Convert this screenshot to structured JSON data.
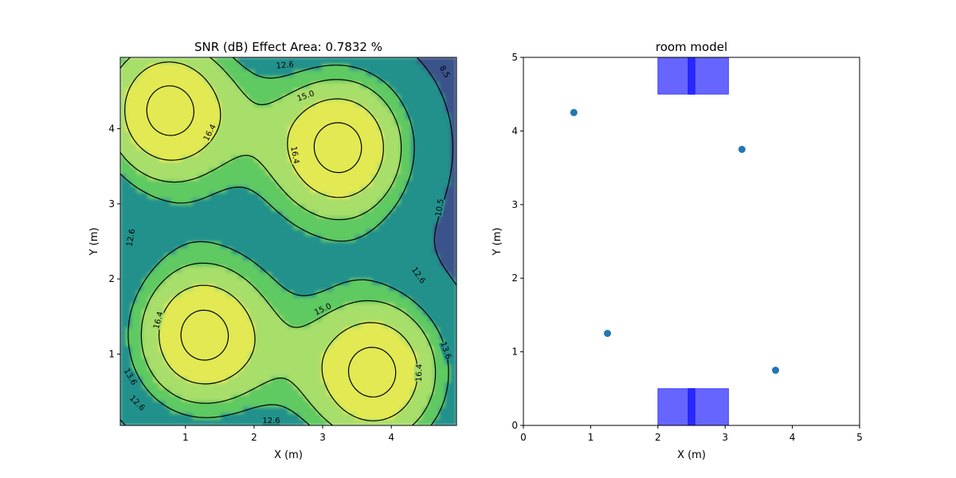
{
  "chart_data": [
    {
      "type": "contour",
      "title": "SNR (dB) Effect Area: 0.7832 %",
      "xlabel": "X (m)",
      "ylabel": "Y (m)",
      "xlim": [
        0.05,
        4.95
      ],
      "ylim": [
        0.05,
        4.95
      ],
      "xticks": [
        "1",
        "2",
        "3",
        "4"
      ],
      "yticks": [
        "1",
        "2",
        "3",
        "4"
      ],
      "sources": [
        [
          0.75,
          4.25
        ],
        [
          3.25,
          3.75
        ],
        [
          1.25,
          1.25
        ],
        [
          3.75,
          0.75
        ]
      ],
      "contour_levels": [
        8.5,
        10.5,
        12.6,
        13.6,
        15.0,
        16.4
      ],
      "contour_labels": [
        {
          "text": "12.6",
          "x": 2.45,
          "y": 4.85,
          "rot": -5
        },
        {
          "text": "8.5",
          "x": 4.78,
          "y": 4.76,
          "rot": 60
        },
        {
          "text": "15.0",
          "x": 2.75,
          "y": 4.44,
          "rot": -20
        },
        {
          "text": "16.4",
          "x": 1.35,
          "y": 3.95,
          "rot": -62
        },
        {
          "text": "16.4",
          "x": 2.6,
          "y": 3.65,
          "rot": 80
        },
        {
          "text": "10.5",
          "x": 4.7,
          "y": 2.95,
          "rot": -80
        },
        {
          "text": "12.6",
          "x": 0.2,
          "y": 2.55,
          "rot": -80
        },
        {
          "text": "12.6",
          "x": 4.4,
          "y": 2.05,
          "rot": 55
        },
        {
          "text": "15.0",
          "x": 3.0,
          "y": 1.6,
          "rot": -25
        },
        {
          "text": "16.4",
          "x": 0.6,
          "y": 1.45,
          "rot": -75
        },
        {
          "text": "13.6",
          "x": 4.8,
          "y": 1.05,
          "rot": 70
        },
        {
          "text": "16.4",
          "x": 4.4,
          "y": 0.75,
          "rot": -88
        },
        {
          "text": "13.6",
          "x": 0.2,
          "y": 0.7,
          "rot": 60
        },
        {
          "text": "12.6",
          "x": 0.3,
          "y": 0.35,
          "rot": 45
        },
        {
          "text": "12.6",
          "x": 2.25,
          "y": 0.12,
          "rot": 0
        }
      ],
      "colormap": [
        "#440154",
        "#3b528b",
        "#21918c",
        "#5ec962",
        "#a8de6a",
        "#e2e953"
      ]
    },
    {
      "type": "scatter",
      "title": "room model",
      "xlabel": "X (m)",
      "ylabel": "Y (m)",
      "xlim": [
        0,
        5
      ],
      "ylim": [
        0,
        5
      ],
      "xticks": [
        "0",
        "1",
        "2",
        "3",
        "4",
        "5"
      ],
      "yticks": [
        "0",
        "1",
        "2",
        "3",
        "4",
        "5"
      ],
      "points": [
        {
          "x": 0.75,
          "y": 4.25
        },
        {
          "x": 3.25,
          "y": 3.75
        },
        {
          "x": 1.25,
          "y": 1.25
        },
        {
          "x": 3.75,
          "y": 0.75
        }
      ],
      "rectangles": [
        {
          "x0": 2.0,
          "x1": 3.05,
          "y0": 4.5,
          "y1": 5.0
        },
        {
          "x0": 2.0,
          "x1": 3.05,
          "y0": 0.0,
          "y1": 0.5
        },
        {
          "x0": 2.45,
          "x1": 2.55,
          "y0": 4.5,
          "y1": 5.0
        },
        {
          "x0": 2.45,
          "x1": 2.55,
          "y0": 0.0,
          "y1": 0.5
        }
      ],
      "point_color": "#1f77b4",
      "rect_color": "#0000ff"
    }
  ]
}
